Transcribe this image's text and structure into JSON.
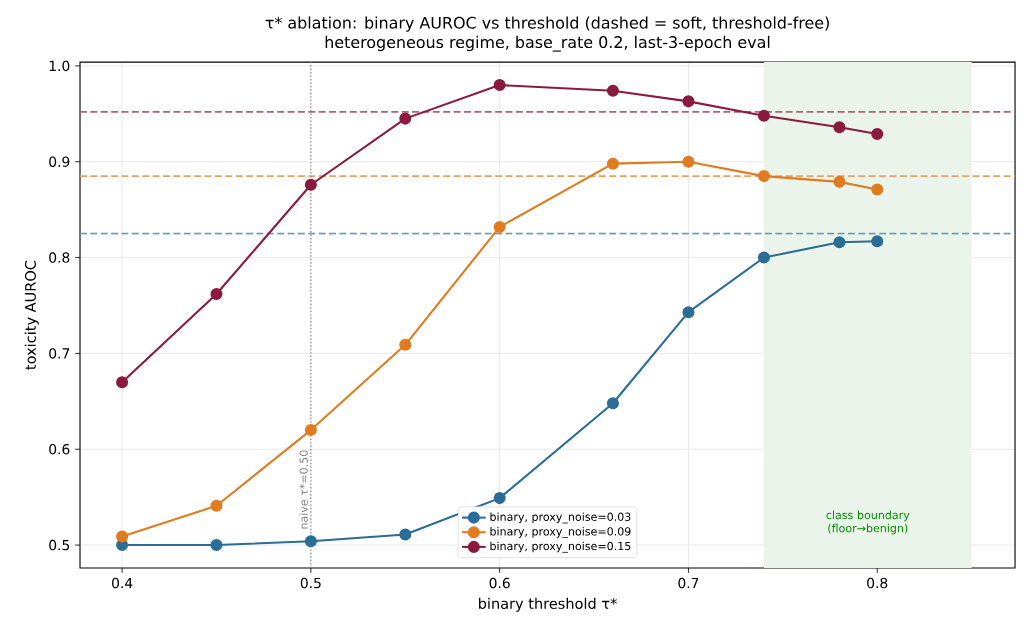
{
  "chart_data": {
    "type": "line",
    "title": "τ* ablation: binary AUROC vs threshold (dashed = soft, threshold-free)",
    "subtitle": "heterogeneous regime, base_rate 0.2, last-3-epoch eval",
    "xlabel": "binary threshold τ*",
    "ylabel": "toxicity AUROC",
    "x": [
      0.4,
      0.45,
      0.5,
      0.55,
      0.6,
      0.66,
      0.7,
      0.74,
      0.78,
      0.8
    ],
    "series": [
      {
        "name": "binary, proxy_noise=0.03",
        "color": "#2a6d96",
        "values": [
          0.5,
          0.5,
          0.504,
          0.511,
          0.549,
          0.648,
          0.743,
          0.8,
          0.816,
          0.817
        ]
      },
      {
        "name": "binary, proxy_noise=0.09",
        "color": "#e07b20",
        "values": [
          0.509,
          0.541,
          0.62,
          0.709,
          0.832,
          0.898,
          0.9,
          0.885,
          0.879,
          0.871
        ]
      },
      {
        "name": "binary, proxy_noise=0.15",
        "color": "#8b1a3f",
        "values": [
          0.67,
          0.762,
          0.876,
          0.945,
          0.98,
          0.974,
          0.963,
          0.948,
          0.936,
          0.929
        ]
      }
    ],
    "ref_lines": [
      {
        "axis": "y",
        "value": 0.952,
        "color": "#b06078",
        "line_style": "dashed"
      },
      {
        "axis": "y",
        "value": 0.885,
        "color": "#e9a262",
        "line_style": "dashed"
      },
      {
        "axis": "y",
        "value": 0.825,
        "color": "#6a98b0",
        "line_style": "dashed"
      },
      {
        "axis": "x",
        "value": 0.5,
        "label": "naive τ*=0.50",
        "color": "#808080",
        "line_style": "dotted"
      }
    ],
    "bands": [
      {
        "axis": "x",
        "from": 0.74,
        "to": 0.85,
        "label": "class boundary (floor→benign)",
        "color": "#eaf4ea"
      }
    ],
    "xlim": [
      0.3777,
      0.873
    ],
    "ylim": [
      0.476,
      1.004
    ],
    "xticks": [
      0.4,
      0.5,
      0.6,
      0.7,
      0.8
    ],
    "yticks": [
      0.5,
      0.6,
      0.7,
      0.8,
      0.9,
      {
        "value": 1.0,
        "label": "1.0"
      }
    ],
    "grid": true,
    "legend": "bottom",
    "marker": "circle",
    "line_style": "solid"
  }
}
